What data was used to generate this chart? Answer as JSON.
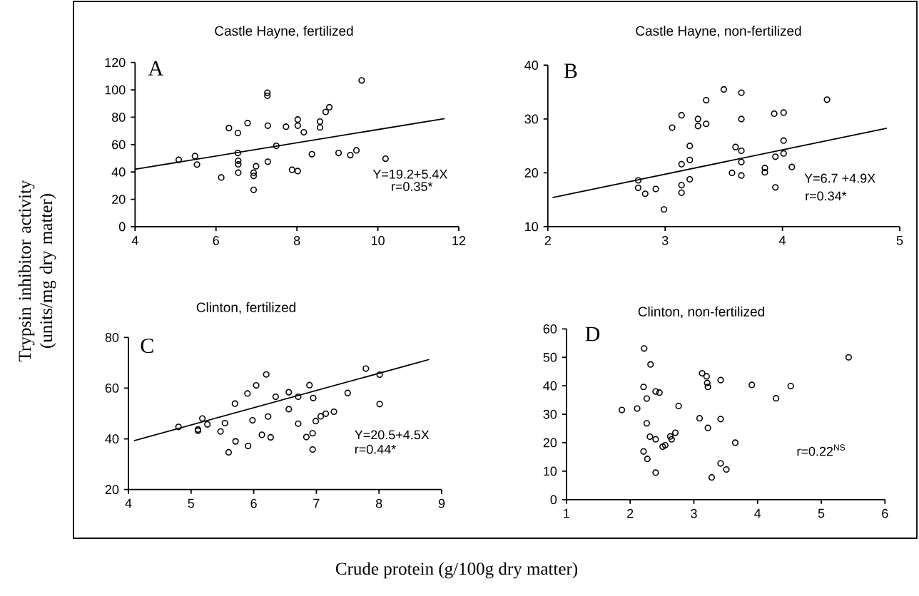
{
  "chart_data": [
    {
      "type": "scatter",
      "title": "Castle Hayne, fertilized",
      "ylabel": "Trypsin inhibitor activity (units/mg dry matter)",
      "annotations": [
        "A",
        "Y=19.2+5.4X",
        "r=0.35*"
      ],
      "xlim": [
        4,
        12
      ],
      "ylim": [
        0,
        120
      ],
      "xticks": [
        4,
        6,
        8,
        10,
        12
      ],
      "yticks": [
        0,
        20,
        40,
        60,
        80,
        100,
        120
      ],
      "series": [
        {
          "marker": "circle",
          "color": "#000000",
          "x": [
            5.08,
            5.48,
            5.53,
            6.13,
            6.32,
            6.54,
            6.54,
            6.55,
            6.55,
            6.55,
            6.78,
            6.93,
            6.93,
            6.93,
            6.99,
            7.27,
            7.27,
            7.28,
            7.28,
            7.49,
            7.73,
            7.88,
            8.02,
            8.02,
            8.02,
            8.17,
            8.37,
            8.57,
            8.57,
            8.71,
            8.8,
            9.03,
            9.32,
            9.47,
            9.6,
            10.19
          ],
          "values": [
            48.9,
            51.6,
            45.4,
            36.0,
            72.1,
            68.5,
            53.9,
            48.2,
            45.6,
            39.5,
            75.7,
            39.5,
            37.1,
            26.9,
            44.2,
            97.9,
            95.7,
            73.8,
            47.5,
            59.1,
            73.1,
            41.6,
            78.3,
            73.8,
            40.7,
            69.0,
            53.0,
            76.8,
            72.6,
            83.9,
            87.3,
            53.9,
            52.3,
            55.8,
            106.9,
            49.7
          ]
        },
        {
          "type": "line",
          "marker": "none",
          "color": "#000000",
          "x": [
            4,
            11.65
          ],
          "values": [
            42,
            79
          ]
        }
      ]
    },
    {
      "type": "scatter",
      "title": "Castle Hayne, non-fertilized",
      "annotations": [
        "B",
        "Y=6.7 +4.9X",
        "r=0.34*"
      ],
      "xlim": [
        2,
        5
      ],
      "ylim": [
        10,
        40
      ],
      "xticks": [
        2,
        3,
        4,
        5
      ],
      "yticks": [
        10,
        20,
        30,
        40
      ],
      "series": [
        {
          "marker": "circle",
          "color": "#000000",
          "x": [
            2.77,
            2.77,
            2.83,
            2.92,
            2.99,
            3.06,
            3.14,
            3.14,
            3.14,
            3.14,
            3.21,
            3.21,
            3.21,
            3.28,
            3.28,
            3.35,
            3.35,
            3.5,
            3.57,
            3.6,
            3.65,
            3.65,
            3.65,
            3.65,
            3.65,
            3.85,
            3.85,
            3.93,
            3.94,
            3.94,
            4.01,
            4.01,
            4.01,
            4.08,
            4.38
          ],
          "values": [
            18.6,
            17.2,
            16.1,
            17.0,
            13.2,
            28.4,
            30.7,
            21.6,
            17.7,
            16.3,
            25.0,
            22.4,
            18.8,
            30.0,
            28.7,
            33.5,
            29.1,
            35.5,
            20.0,
            24.8,
            34.9,
            30.0,
            24.1,
            22.0,
            19.5,
            20.9,
            20.1,
            31.0,
            23.0,
            17.3,
            31.2,
            26.0,
            23.6,
            21.1,
            33.6
          ]
        },
        {
          "type": "line",
          "marker": "none",
          "color": "#000000",
          "x": [
            2.04,
            4.89
          ],
          "values": [
            15.4,
            28.3
          ]
        }
      ]
    },
    {
      "type": "scatter",
      "title": "Clinton, fertilized",
      "xlabel": "Crude protein (g/100g dry matter)",
      "annotations": [
        "C",
        "Y=20.5+4.5X",
        "r=0.44*"
      ],
      "xlim": [
        4,
        9
      ],
      "ylim": [
        20,
        80
      ],
      "xticks": [
        4,
        5,
        6,
        7,
        8,
        9
      ],
      "yticks": [
        20,
        40,
        60,
        80
      ],
      "series": [
        {
          "marker": "circle",
          "color": "#000000",
          "x": [
            4.8,
            5.11,
            5.11,
            5.18,
            5.26,
            5.47,
            5.54,
            5.6,
            5.7,
            5.71,
            5.9,
            5.91,
            5.98,
            6.04,
            6.13,
            6.2,
            6.23,
            6.27,
            6.35,
            6.56,
            6.56,
            6.71,
            6.71,
            6.84,
            6.89,
            6.94,
            6.94,
            6.95,
            6.99,
            7.07,
            7.15,
            7.28,
            7.5,
            7.79,
            8.01,
            8.01
          ],
          "values": [
            44.7,
            43.7,
            43.2,
            48.0,
            45.7,
            42.9,
            46.2,
            34.7,
            53.9,
            39.0,
            57.9,
            37.2,
            47.3,
            61.1,
            41.6,
            65.4,
            48.8,
            40.6,
            56.6,
            58.4,
            51.7,
            56.6,
            46.0,
            40.7,
            61.2,
            42.2,
            35.8,
            56.1,
            47.0,
            48.9,
            49.9,
            50.7,
            58.1,
            67.7,
            65.3,
            53.7
          ]
        },
        {
          "type": "line",
          "marker": "none",
          "color": "#000000",
          "x": [
            4.09,
            8.8
          ],
          "values": [
            39.3,
            71.3
          ]
        }
      ]
    },
    {
      "type": "scatter",
      "title": "Clinton, non-fertilized",
      "annotations": [
        "D",
        "r=0.22$^{NS}$"
      ],
      "xlim": [
        1,
        6
      ],
      "ylim": [
        0,
        60
      ],
      "xticks": [
        1,
        2,
        3,
        4,
        5,
        6
      ],
      "yticks": [
        0,
        10,
        20,
        30,
        40,
        50,
        60
      ],
      "series": [
        {
          "marker": "circle",
          "color": "#000000",
          "x": [
            1.87,
            2.11,
            2.22,
            2.21,
            2.21,
            2.26,
            2.26,
            2.27,
            2.32,
            2.31,
            2.4,
            2.46,
            2.4,
            2.4,
            2.51,
            2.55,
            2.63,
            2.65,
            2.71,
            2.76,
            3.09,
            3.13,
            3.2,
            3.21,
            3.22,
            3.22,
            3.28,
            3.42,
            3.42,
            3.42,
            3.51,
            3.65,
            3.91,
            4.29,
            4.52,
            5.43
          ],
          "values": [
            31.5,
            32.0,
            53.1,
            39.6,
            16.9,
            35.5,
            26.8,
            14.3,
            47.5,
            22.1,
            38.0,
            37.6,
            21.2,
            9.5,
            18.6,
            19.1,
            22.2,
            21.2,
            23.5,
            32.9,
            28.6,
            44.4,
            43.3,
            41.0,
            39.6,
            25.2,
            7.8,
            12.7,
            42.0,
            28.3,
            10.6,
            20.0,
            40.3,
            35.6,
            39.9,
            50.0
          ]
        }
      ]
    }
  ]
}
